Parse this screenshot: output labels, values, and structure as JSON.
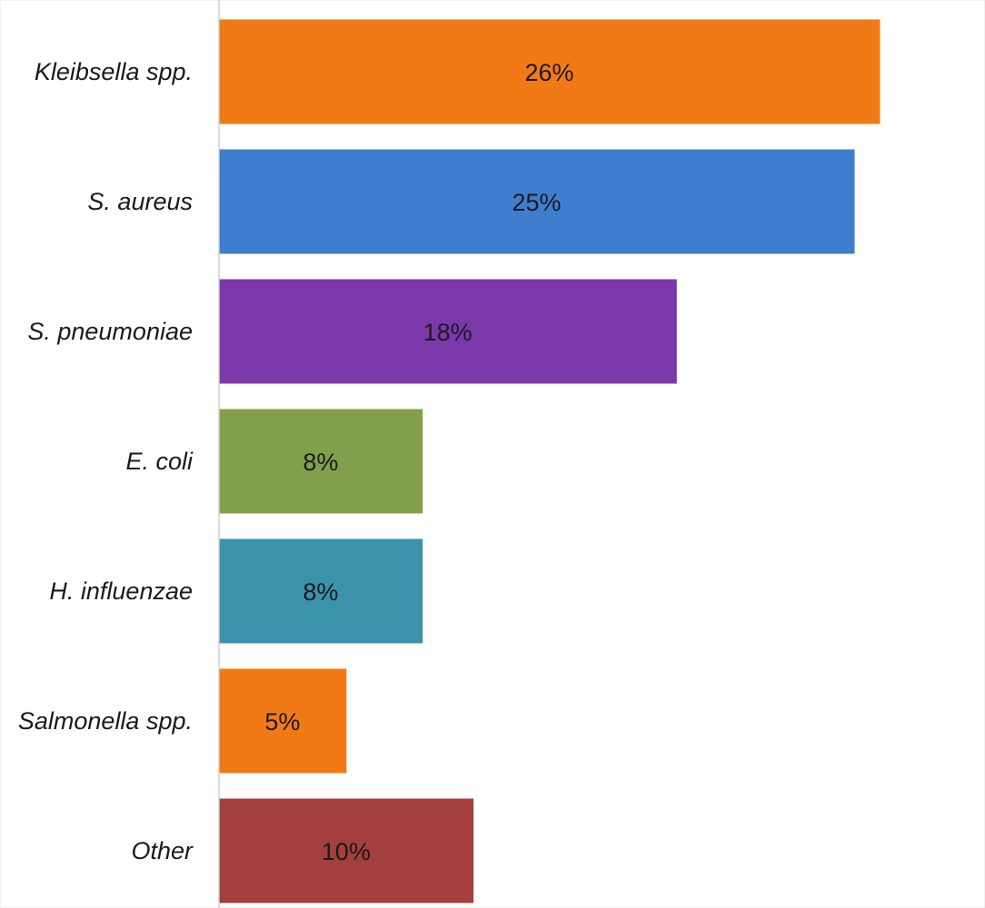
{
  "chart_data": {
    "type": "bar",
    "orientation": "horizontal",
    "categories": [
      "Kleibsella spp.",
      "S. aureus",
      "S. pneumoniae",
      "E. coli",
      "H. influenzae",
      "Salmonella spp.",
      "Other"
    ],
    "values": [
      26,
      25,
      18,
      8,
      8,
      5,
      10
    ],
    "value_labels": [
      "26%",
      "25%",
      "18%",
      "8%",
      "8%",
      "5%",
      "10%"
    ],
    "colors": [
      "#F17A17",
      "#3F7ECF",
      "#7B38AB",
      "#82A04B",
      "#3A93AB",
      "#F17A17",
      "#A33F3C"
    ],
    "title": "",
    "xlabel": "",
    "ylabel": "",
    "xlim": [
      0,
      26
    ],
    "grid": false,
    "legend": "none"
  }
}
